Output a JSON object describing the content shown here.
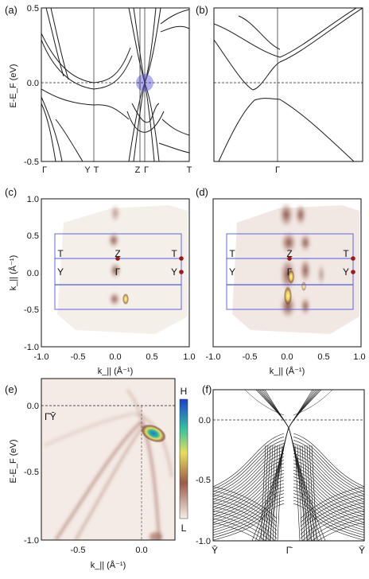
{
  "figure": {
    "panel_labels": [
      "(a)",
      "(b)",
      "(c)",
      "(d)",
      "(e)",
      "(f)"
    ],
    "colors": {
      "axis": "#111111",
      "band": "#1a1a1a",
      "dirac_highlight": "#6f6fe6",
      "bz_box": "#4f57e6",
      "marker": "#9a1b1b",
      "intensity_low": "#f3ece6",
      "intensity_mid": "#8a4a3a",
      "intensity_high": "#e8e14a",
      "intensity_top": "#1b5fd6"
    },
    "colorbar": {
      "high_label": "H",
      "low_label": "L"
    }
  },
  "chart_data": [
    {
      "panel": "(a)",
      "type": "line",
      "ylabel": "E-E_F (eV)",
      "ylim": [
        -0.5,
        0.5
      ],
      "yticks": [
        "0.5",
        "0.0",
        "-0.5"
      ],
      "xtick_labels": [
        "Γ",
        "Y",
        "T",
        "Z",
        "Γ",
        "T"
      ],
      "dashed_line_y": 0.0
    },
    {
      "panel": "(b)",
      "type": "line",
      "ylim": [
        -0.5,
        0.5
      ],
      "xtick_labels": [
        "Γ"
      ],
      "dashed_line_y": 0.0
    },
    {
      "panel": "(c)",
      "type": "heatmap",
      "xlabel": "k_|| (Å⁻¹)",
      "ylabel": "k_|| (Å⁻¹)",
      "xlim": [
        -1.0,
        1.0
      ],
      "ylim": [
        -1.0,
        1.0
      ],
      "xticks": [
        "-1.0",
        "-0.5",
        "0.0",
        "0.5",
        "1.0"
      ],
      "yticks": [
        "1.0",
        "0.5",
        "0.0",
        "-0.5",
        "-1.0"
      ],
      "point_labels": [
        "T",
        "Z",
        "T",
        "Y",
        "Γ",
        "Y"
      ]
    },
    {
      "panel": "(d)",
      "type": "heatmap",
      "xlabel": "k_|| (Å⁻¹)",
      "xlim": [
        -1.0,
        1.0
      ],
      "ylim": [
        -1.0,
        1.0
      ],
      "xticks": [
        "-1.0",
        "-0.5",
        "0.0",
        "0.5",
        "1.0"
      ],
      "point_labels": [
        "T",
        "Z",
        "T",
        "Y",
        "Γ",
        "Y"
      ]
    },
    {
      "panel": "(e)",
      "type": "heatmap",
      "xlabel": "k_|| (Å⁻¹)",
      "ylabel": "E-E_F (eV)",
      "xlim": [
        -0.8,
        0.25
      ],
      "ylim": [
        -1.0,
        0.05
      ],
      "xticks": [
        "-0.5",
        "0.0"
      ],
      "yticks": [
        "0.0",
        "-0.5",
        "-1.0"
      ],
      "path_label": "Γ̄Ȳ",
      "dashed_line_y": 0.0
    },
    {
      "panel": "(f)",
      "type": "line",
      "ylim": [
        -1.0,
        0.15
      ],
      "yticks": [
        "0.0",
        "-0.5",
        "-1.0"
      ],
      "xtick_labels": [
        "Ȳ",
        "Γ̄",
        "Ȳ"
      ],
      "dashed_line_y": 0.0
    }
  ]
}
